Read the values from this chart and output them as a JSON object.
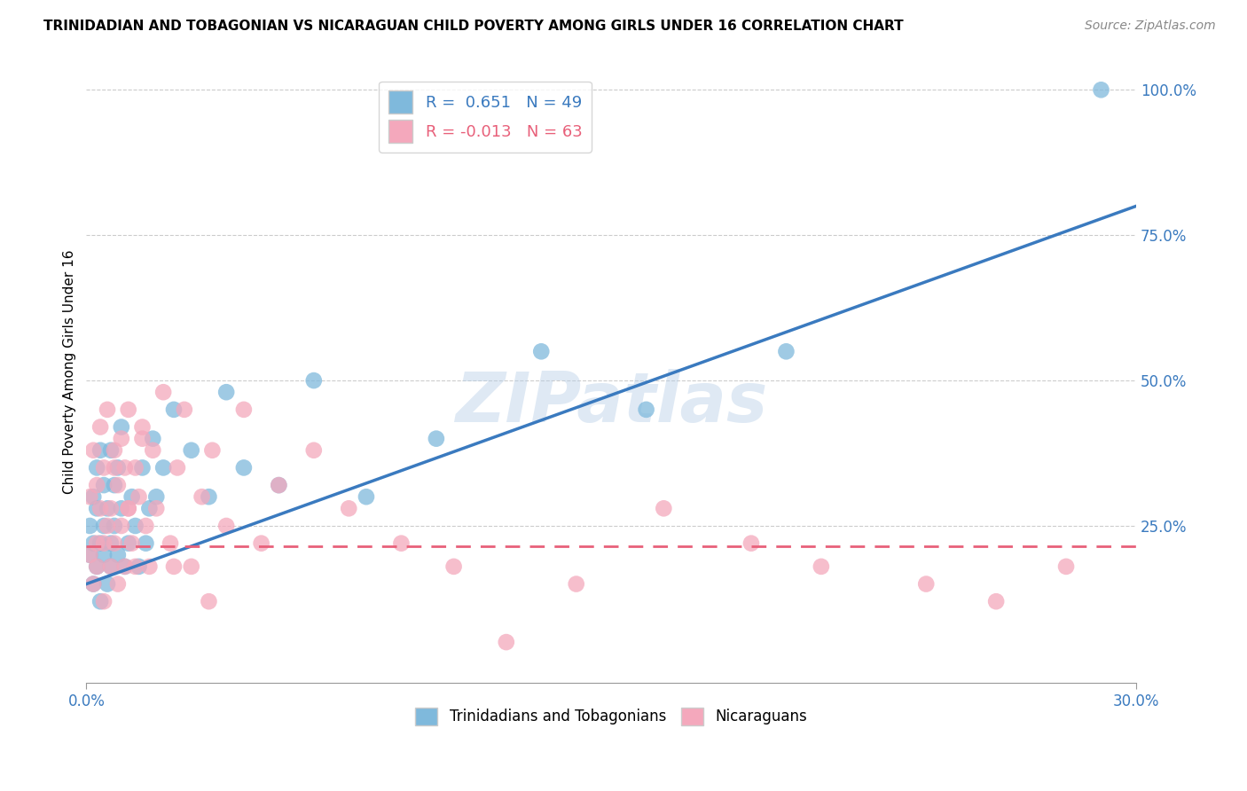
{
  "title": "TRINIDADIAN AND TOBAGONIAN VS NICARAGUAN CHILD POVERTY AMONG GIRLS UNDER 16 CORRELATION CHART",
  "source": "Source: ZipAtlas.com",
  "ylabel": "Child Poverty Among Girls Under 16",
  "xlim": [
    0.0,
    0.3
  ],
  "ylim": [
    -0.02,
    1.05
  ],
  "xticklabels": [
    "0.0%",
    "30.0%"
  ],
  "ytick_positions": [
    0.25,
    0.5,
    0.75,
    1.0
  ],
  "ytick_labels": [
    "25.0%",
    "50.0%",
    "75.0%",
    "100.0%"
  ],
  "blue_color": "#7fb9dc",
  "pink_color": "#f4a8bc",
  "blue_line_color": "#3a7abf",
  "pink_line_color": "#e8607a",
  "R_blue": 0.651,
  "N_blue": 49,
  "R_pink": -0.013,
  "N_pink": 63,
  "watermark": "ZIPatlas",
  "legend_labels": [
    "Trinidadians and Tobagonians",
    "Nicaraguans"
  ],
  "blue_line_x0": 0.0,
  "blue_line_y0": 0.15,
  "blue_line_x1": 0.3,
  "blue_line_y1": 0.8,
  "pink_line_x0": 0.0,
  "pink_line_y0": 0.215,
  "pink_line_x1": 0.3,
  "pink_line_y1": 0.215,
  "blue_scatter_x": [
    0.001,
    0.001,
    0.002,
    0.002,
    0.002,
    0.003,
    0.003,
    0.003,
    0.004,
    0.004,
    0.004,
    0.005,
    0.005,
    0.005,
    0.006,
    0.006,
    0.007,
    0.007,
    0.007,
    0.008,
    0.008,
    0.009,
    0.009,
    0.01,
    0.01,
    0.011,
    0.012,
    0.013,
    0.014,
    0.015,
    0.016,
    0.017,
    0.018,
    0.019,
    0.02,
    0.022,
    0.025,
    0.03,
    0.035,
    0.04,
    0.045,
    0.055,
    0.065,
    0.08,
    0.1,
    0.13,
    0.16,
    0.2,
    0.29
  ],
  "blue_scatter_y": [
    0.2,
    0.25,
    0.15,
    0.22,
    0.3,
    0.18,
    0.28,
    0.35,
    0.22,
    0.38,
    0.12,
    0.2,
    0.25,
    0.32,
    0.15,
    0.28,
    0.18,
    0.22,
    0.38,
    0.25,
    0.32,
    0.2,
    0.35,
    0.28,
    0.42,
    0.18,
    0.22,
    0.3,
    0.25,
    0.18,
    0.35,
    0.22,
    0.28,
    0.4,
    0.3,
    0.35,
    0.45,
    0.38,
    0.3,
    0.48,
    0.35,
    0.32,
    0.5,
    0.3,
    0.4,
    0.55,
    0.45,
    0.55,
    1.0
  ],
  "pink_scatter_x": [
    0.001,
    0.001,
    0.002,
    0.002,
    0.003,
    0.003,
    0.003,
    0.004,
    0.004,
    0.005,
    0.005,
    0.006,
    0.006,
    0.007,
    0.007,
    0.008,
    0.008,
    0.009,
    0.009,
    0.01,
    0.01,
    0.011,
    0.011,
    0.012,
    0.012,
    0.013,
    0.014,
    0.014,
    0.015,
    0.016,
    0.017,
    0.018,
    0.019,
    0.02,
    0.022,
    0.024,
    0.026,
    0.028,
    0.03,
    0.033,
    0.036,
    0.04,
    0.045,
    0.05,
    0.055,
    0.065,
    0.075,
    0.09,
    0.105,
    0.12,
    0.14,
    0.165,
    0.19,
    0.21,
    0.24,
    0.26,
    0.28,
    0.005,
    0.008,
    0.012,
    0.016,
    0.025,
    0.035
  ],
  "pink_scatter_y": [
    0.2,
    0.3,
    0.15,
    0.38,
    0.22,
    0.32,
    0.18,
    0.28,
    0.42,
    0.12,
    0.35,
    0.25,
    0.45,
    0.18,
    0.28,
    0.38,
    0.22,
    0.32,
    0.15,
    0.4,
    0.25,
    0.18,
    0.35,
    0.28,
    0.45,
    0.22,
    0.35,
    0.18,
    0.3,
    0.42,
    0.25,
    0.18,
    0.38,
    0.28,
    0.48,
    0.22,
    0.35,
    0.45,
    0.18,
    0.3,
    0.38,
    0.25,
    0.45,
    0.22,
    0.32,
    0.38,
    0.28,
    0.22,
    0.18,
    0.05,
    0.15,
    0.28,
    0.22,
    0.18,
    0.15,
    0.12,
    0.18,
    0.22,
    0.35,
    0.28,
    0.4,
    0.18,
    0.12
  ]
}
